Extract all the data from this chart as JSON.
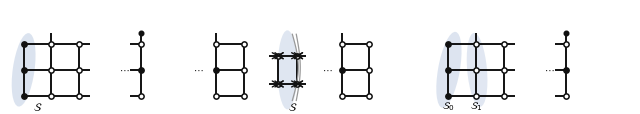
{
  "bg_color": "#ffffff",
  "blue_fill": "#b8c8e0",
  "line_color": "#111111",
  "line_width": 1.4,
  "node_open_color": "#ffffff",
  "node_closed_color": "#111111",
  "node_edge_color": "#111111",
  "label_S": "$\\mathcal{S}$",
  "label_S0": "$\\mathcal{S}_0$",
  "label_S1": "$\\mathcal{S}_1$",
  "fig_width": 6.4,
  "fig_height": 1.15,
  "dpi": 100
}
